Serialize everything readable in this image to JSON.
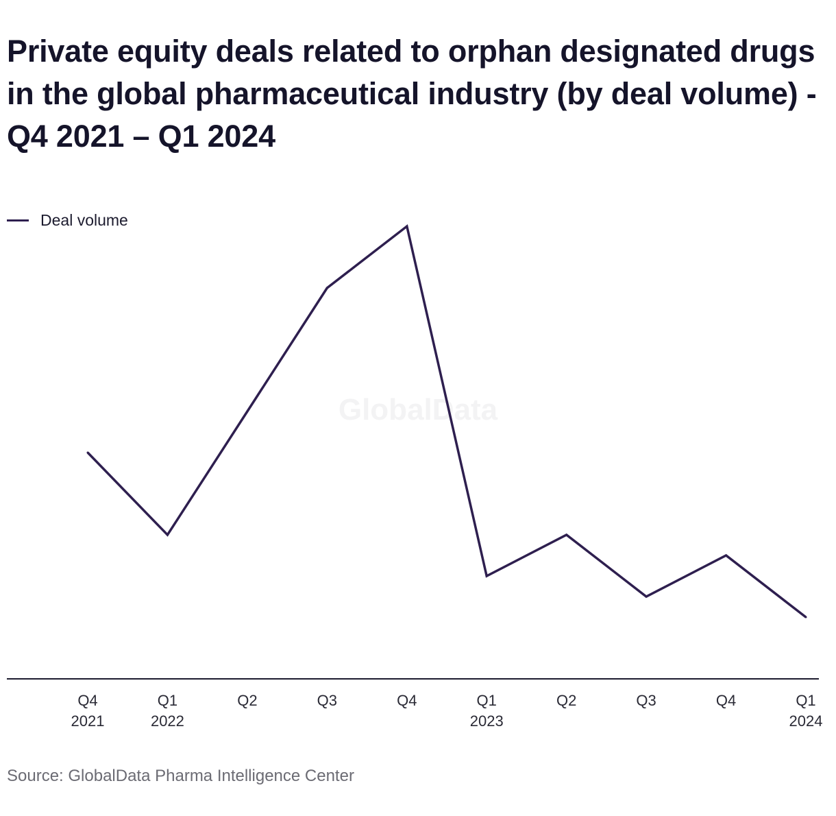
{
  "chart_data": {
    "type": "line",
    "title": "Private equity deals related to orphan designated drugs in the global pharmaceutical industry (by deal volume) - Q4 2021 – Q1 2024",
    "categories": [
      [
        "Q4",
        "2021"
      ],
      [
        "Q1",
        "2022"
      ],
      [
        "Q2"
      ],
      [
        "Q3"
      ],
      [
        "Q4"
      ],
      [
        "Q1",
        "2023"
      ],
      [
        "Q2"
      ],
      [
        "Q3"
      ],
      [
        "Q4"
      ],
      [
        "Q1",
        "2024"
      ]
    ],
    "series": [
      {
        "name": "Deal volume",
        "color": "#2e1f4f",
        "values": [
          11,
          7,
          13,
          19,
          22,
          5,
          7,
          4,
          6,
          3
        ]
      }
    ],
    "ylim": [
      0,
      25
    ],
    "xlabel": "",
    "ylabel": "",
    "grid": false,
    "legend_position": "top-left",
    "watermark": "GlobalData",
    "source": "Source: GlobalData Pharma Intelligence Center"
  }
}
